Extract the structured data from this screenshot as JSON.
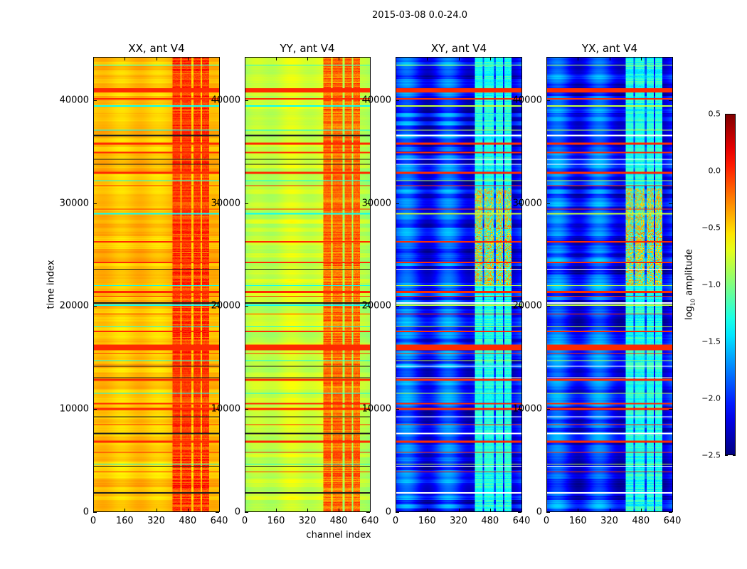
{
  "chart_data": {
    "type": "heatmap",
    "title": "2015-03-08 0.0-24.0",
    "xlabel": "channel index",
    "ylabel": "time index",
    "xlim": [
      0,
      640
    ],
    "ylim": [
      0,
      44200
    ],
    "xticks": [
      0,
      160,
      320,
      480,
      640
    ],
    "yticks": [
      0,
      10000,
      20000,
      30000,
      40000
    ],
    "colormap": "jet",
    "colorbar": {
      "label_prefix": "log",
      "label_sub": "10",
      "label_suffix": " amplitude",
      "range": [
        -2.5,
        0.5
      ],
      "ticks": [
        "0.5",
        "0.0",
        "−0.5",
        "−1.0",
        "−1.5",
        "−2.0",
        "−2.5"
      ],
      "tick_values": [
        0.5,
        0.0,
        -0.5,
        -1.0,
        -1.5,
        -2.0,
        -2.5
      ]
    },
    "panels": [
      {
        "title": "XX, ant V4",
        "base_level": -0.45,
        "rfi_channel_level": -0.05
      },
      {
        "title": "YY, ant V4",
        "base_level": -0.75,
        "rfi_channel_level": -0.2
      },
      {
        "title": "XY, ant V4",
        "base_level": -2.0,
        "rfi_channel_level": -1.3
      },
      {
        "title": "YX, ant V4",
        "base_level": -2.0,
        "rfi_channel_level": -1.3
      }
    ],
    "rfi_channel_range": [
      400,
      600
    ],
    "rfi_channel_gaps": [
      [
        440,
        450
      ],
      [
        500,
        510
      ],
      [
        545,
        555
      ],
      [
        590,
        600
      ]
    ],
    "rfi_time_bands": [
      {
        "start": 40800,
        "end": 41200,
        "level": 0.0
      },
      {
        "start": 40150,
        "end": 40250,
        "level": 0.0
      },
      {
        "start": 35700,
        "end": 35900,
        "level": 0.0
      },
      {
        "start": 34900,
        "end": 35000,
        "level": 0.0
      },
      {
        "start": 32900,
        "end": 33100,
        "level": 0.0
      },
      {
        "start": 31700,
        "end": 31800,
        "level": 0.0
      },
      {
        "start": 29400,
        "end": 29500,
        "level": 0.0
      },
      {
        "start": 26200,
        "end": 26300,
        "level": 0.0
      },
      {
        "start": 24200,
        "end": 24300,
        "level": 0.0
      },
      {
        "start": 21300,
        "end": 21500,
        "level": 0.0
      },
      {
        "start": 20900,
        "end": 21000,
        "level": 0.0
      },
      {
        "start": 19200,
        "end": 19300,
        "level": 0.0
      },
      {
        "start": 17500,
        "end": 17600,
        "level": 0.0
      },
      {
        "start": 15700,
        "end": 16200,
        "level": 0.0
      },
      {
        "start": 15300,
        "end": 15400,
        "level": 0.0
      },
      {
        "start": 12700,
        "end": 12900,
        "level": 0.0
      },
      {
        "start": 10400,
        "end": 10600,
        "level": 0.0
      },
      {
        "start": 9900,
        "end": 10100,
        "level": 0.0
      },
      {
        "start": 8400,
        "end": 8500,
        "level": 0.0
      },
      {
        "start": 6700,
        "end": 6900,
        "level": 0.0
      },
      {
        "start": 5700,
        "end": 5800,
        "level": 0.0
      },
      {
        "start": 3800,
        "end": 3900,
        "level": 0.0
      }
    ],
    "low_time_lines": [
      43500,
      39500,
      37100,
      32200,
      29000,
      22000,
      20100,
      18000,
      14700,
      11500,
      4600
    ],
    "dark_time_lines": [
      36600,
      34300,
      33800,
      23600,
      20300,
      14100,
      13000,
      9200,
      7600,
      4400,
      1800
    ]
  }
}
